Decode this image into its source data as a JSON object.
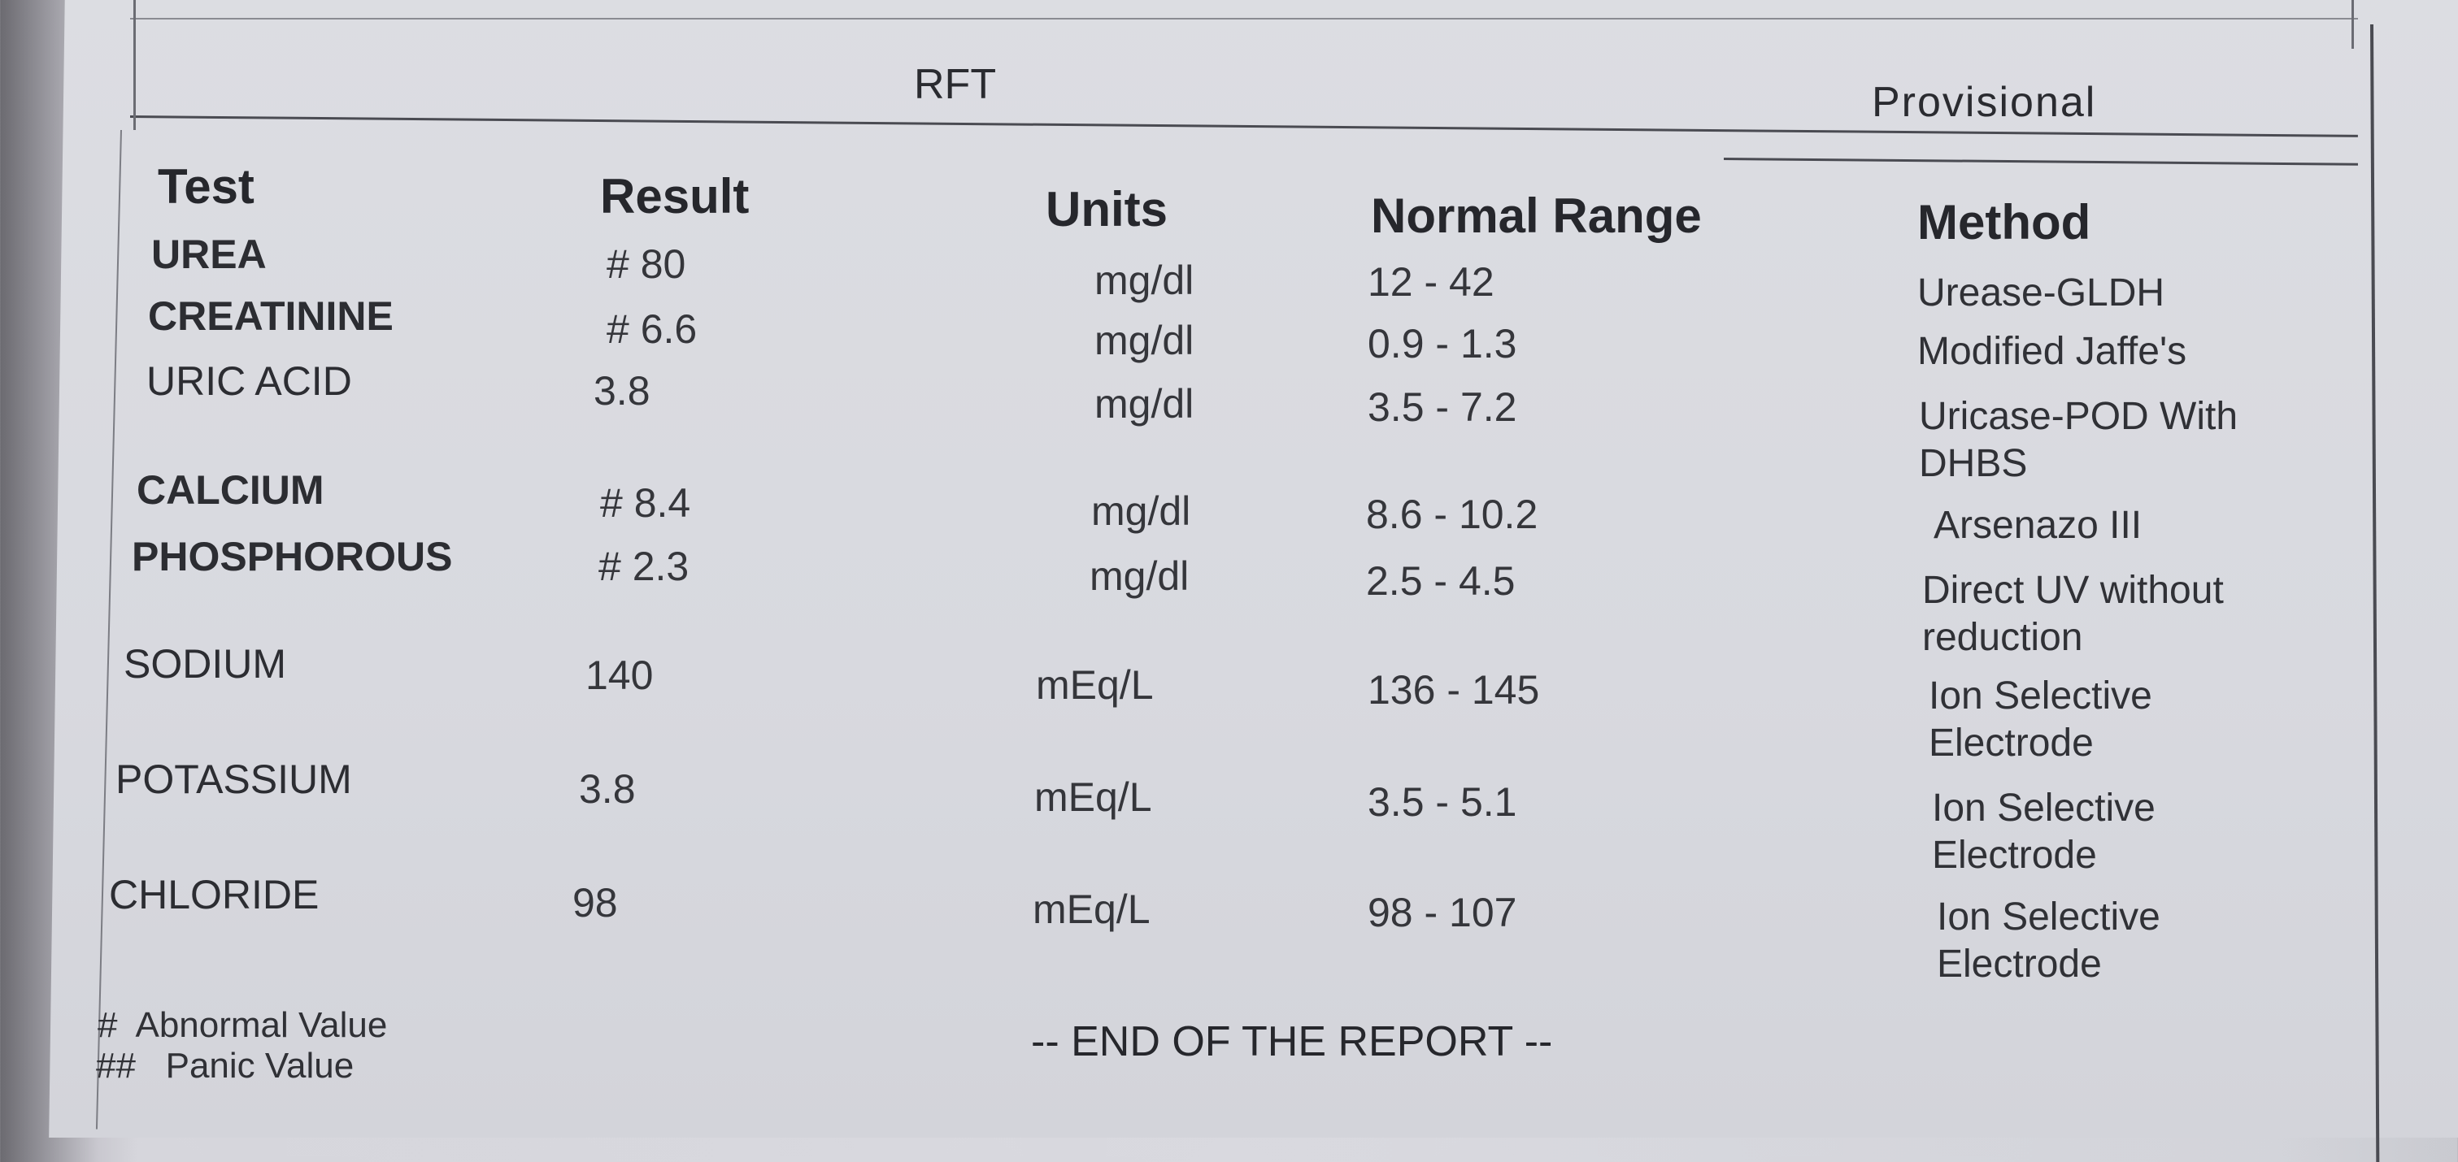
{
  "header": {
    "section_title": "RFT",
    "status": "Provisional"
  },
  "columns": {
    "test": "Test",
    "result": "Result",
    "units": "Units",
    "normal_range": "Normal Range",
    "method": "Method"
  },
  "rows": [
    {
      "test": "UREA",
      "result": "# 80",
      "units": "mg/dl",
      "range": "12 - 42",
      "method": "Urease-GLDH"
    },
    {
      "test": "CREATININE",
      "result": "# 6.6",
      "units": "mg/dl",
      "range": "0.9 - 1.3",
      "method": "Modified Jaffe's"
    },
    {
      "test": "URIC ACID",
      "result": "3.8",
      "units": "mg/dl",
      "range": "3.5 - 7.2",
      "method": "Uricase-POD With DHBS"
    },
    {
      "test": "CALCIUM",
      "result": "# 8.4",
      "units": "mg/dl",
      "range": "8.6 - 10.2",
      "method": "Arsenazo III"
    },
    {
      "test": "PHOSPHOROUS",
      "result": "# 2.3",
      "units": "mg/dl",
      "range": "2.5 - 4.5",
      "method": "Direct UV without reduction"
    },
    {
      "test": "SODIUM",
      "result": "140",
      "units": "mEq/L",
      "range": "136 - 145",
      "method": "Ion Selective Electrode"
    },
    {
      "test": "POTASSIUM",
      "result": "3.8",
      "units": "mEq/L",
      "range": "3.5 - 5.1",
      "method": "Ion Selective Electrode"
    },
    {
      "test": "CHLORIDE",
      "result": "98",
      "units": "mEq/L",
      "range": "98 - 107",
      "method": "Ion Selective Electrode"
    }
  ],
  "footer": {
    "legend_abnormal": "#  Abnormal Value",
    "legend_panic": "##   Panic Value",
    "end_text": "-- END OF THE REPORT --"
  }
}
